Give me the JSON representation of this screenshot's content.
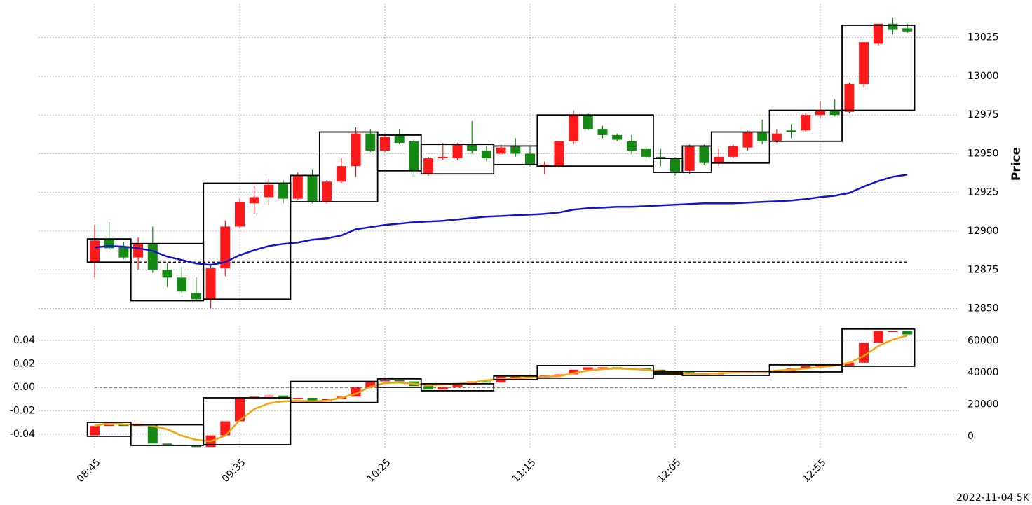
{
  "chart_data": [
    {
      "type": "candlestick",
      "ylabel": "Price",
      "open": [
        12880,
        12895,
        12890,
        12883,
        12892,
        12875,
        12870,
        12860,
        12856,
        12876,
        12903,
        12918,
        12922,
        12931,
        12921,
        12936,
        12919,
        12932,
        12942,
        12963,
        12952,
        12962,
        12958,
        12937,
        12947,
        12947,
        12956,
        12952,
        12950,
        12955,
        12950,
        12942,
        12942,
        12958,
        12975,
        12966,
        12962,
        12958,
        12953,
        12948,
        12947,
        12939,
        12955,
        12944,
        12948,
        12954,
        12964,
        12958,
        12965,
        12965,
        12975,
        12978,
        12977,
        12995,
        13021,
        13034,
        13031
      ],
      "high": [
        12904,
        12906,
        12893,
        12896,
        12903,
        12879,
        12877,
        12870,
        12879,
        12907,
        12921,
        12929,
        12934,
        12933,
        12938,
        12940,
        12933,
        12947,
        12967,
        12966,
        12962,
        12966,
        12959,
        12948,
        12957,
        12957,
        12971,
        12955,
        12956,
        12960,
        12955,
        12945,
        12958,
        12978,
        12976,
        12968,
        12963,
        12962,
        12955,
        12953,
        12948,
        12956,
        12956,
        12953,
        12956,
        12965,
        12972,
        12966,
        12969,
        12976,
        12984,
        12985,
        12996,
        13022,
        13034,
        13038,
        13034
      ],
      "low": [
        12870,
        12888,
        12882,
        12875,
        12873,
        12864,
        12860,
        12855,
        12850,
        12871,
        12902,
        12911,
        12917,
        12918,
        12920,
        12918,
        12918,
        12931,
        12935,
        12951,
        12951,
        12956,
        12935,
        12936,
        12946,
        12946,
        12950,
        12945,
        12949,
        12948,
        12942,
        12937,
        12941,
        12956,
        12965,
        12960,
        12958,
        12950,
        12947,
        12942,
        12936,
        12937,
        12943,
        12942,
        12947,
        12952,
        12956,
        12957,
        12960,
        12964,
        12973,
        12974,
        12976,
        12993,
        13020,
        13027,
        13028
      ],
      "close": [
        12894,
        12889,
        12883,
        12892,
        12875,
        12870,
        12861,
        12856,
        12876,
        12903,
        12919,
        12922,
        12930,
        12921,
        12936,
        12919,
        12932,
        12942,
        12963,
        12952,
        12961,
        12957,
        12939,
        12947,
        12948,
        12956,
        12952,
        12947,
        12954,
        12950,
        12943,
        12943,
        12958,
        12975,
        12966,
        12962,
        12959,
        12952,
        12948,
        12947,
        12938,
        12955,
        12944,
        12948,
        12955,
        12964,
        12958,
        12963,
        12964,
        12975,
        12978,
        12975,
        12995,
        13022,
        13034,
        13030,
        13029
      ],
      "up_color": "#fe1a1a",
      "down_color": "#148a14",
      "ylim": [
        12848,
        13047
      ],
      "yticks": [
        12850,
        12875,
        12900,
        12925,
        12950,
        12975,
        13000,
        13025
      ],
      "grid": true,
      "reference_line": 12880,
      "series": [
        {
          "color": "#1414c8",
          "values": [
            12889.5,
            12890.4,
            12890.0,
            12889.0,
            12887.2,
            12883.6,
            12881.4,
            12879.1,
            12878.2,
            12880.0,
            12884.5,
            12887.7,
            12890.4,
            12891.8,
            12892.7,
            12894.5,
            12895.4,
            12897.2,
            12901.2,
            12902.6,
            12904.0,
            12904.9,
            12905.8,
            12906.2,
            12906.7,
            12907.6,
            12908.5,
            12909.4,
            12909.8,
            12910.3,
            12910.7,
            12911.2,
            12912.1,
            12913.9,
            12914.8,
            12915.2,
            12915.7,
            12915.7,
            12916.1,
            12916.6,
            12917.1,
            12917.5,
            12918.0,
            12918.0,
            12918.0,
            12918.4,
            12918.9,
            12919.3,
            12919.8,
            12920.7,
            12922.0,
            12922.9,
            12924.7,
            12928.8,
            12932.4,
            12935.1,
            12936.5
          ]
        }
      ],
      "boxes": [
        {
          "start": 0,
          "end": 2,
          "low": 12880,
          "high": 12895
        },
        {
          "start": 3,
          "end": 7,
          "low": 12855,
          "high": 12892
        },
        {
          "start": 8,
          "end": 13,
          "low": 12856,
          "high": 12931
        },
        {
          "start": 14,
          "end": 15,
          "low": 12919,
          "high": 12936
        },
        {
          "start": 16,
          "end": 19,
          "low": 12919,
          "high": 12964
        },
        {
          "start": 20,
          "end": 22,
          "low": 12939,
          "high": 12962
        },
        {
          "start": 23,
          "end": 27,
          "low": 12937,
          "high": 12956
        },
        {
          "start": 28,
          "end": 30,
          "low": 12943,
          "high": 12955
        },
        {
          "start": 31,
          "end": 38,
          "low": 12942,
          "high": 12975
        },
        {
          "start": 39,
          "end": 40,
          "low": 12938,
          "high": 12947
        },
        {
          "start": 41,
          "end": 42,
          "low": 12938,
          "high": 12955
        },
        {
          "start": 43,
          "end": 46,
          "low": 12944,
          "high": 12964
        },
        {
          "start": 47,
          "end": 51,
          "low": 12958,
          "high": 12978
        },
        {
          "start": 52,
          "end": 56,
          "low": 12978,
          "high": 13033
        }
      ]
    },
    {
      "type": "candlestick",
      "categories": [
        "08:45",
        null,
        null,
        null,
        null,
        null,
        null,
        null,
        null,
        null,
        "09:35",
        null,
        null,
        null,
        null,
        null,
        null,
        null,
        null,
        null,
        "10:25",
        null,
        null,
        null,
        null,
        null,
        null,
        null,
        null,
        null,
        "11:15",
        null,
        null,
        null,
        null,
        null,
        null,
        null,
        null,
        null,
        "12:05",
        null,
        null,
        null,
        null,
        null,
        null,
        null,
        null,
        null,
        "12:55",
        null,
        null,
        null,
        null,
        null,
        null
      ],
      "open": [
        -0.041,
        -0.033,
        -0.032,
        -0.033,
        -0.032,
        -0.048,
        -0.049,
        -0.05,
        -0.051,
        -0.041,
        -0.029,
        -0.009,
        -0.008,
        -0.007,
        -0.01,
        -0.009,
        -0.012,
        -0.01,
        -0.008,
        0.0,
        0.005,
        0.006,
        0.005,
        0.001,
        -0.002,
        0.0,
        0.002,
        0.005,
        0.004,
        0.009,
        0.009,
        0.009,
        0.01,
        0.011,
        0.015,
        0.017,
        0.017,
        0.016,
        0.016,
        0.015,
        0.014,
        0.013,
        0.012,
        0.011,
        0.012,
        0.013,
        0.013,
        0.013,
        0.014,
        0.016,
        0.018,
        0.019,
        0.018,
        0.021,
        0.038,
        0.048,
        0.048
      ],
      "close": [
        -0.033,
        -0.032,
        -0.033,
        -0.032,
        -0.048,
        -0.049,
        -0.05,
        -0.051,
        -0.041,
        -0.029,
        -0.009,
        -0.008,
        -0.007,
        -0.01,
        -0.009,
        -0.012,
        -0.01,
        -0.008,
        0.0,
        0.005,
        0.006,
        0.005,
        0.001,
        -0.002,
        0.0,
        0.002,
        0.005,
        0.004,
        0.009,
        0.009,
        0.009,
        0.01,
        0.011,
        0.015,
        0.017,
        0.017,
        0.016,
        0.016,
        0.015,
        0.014,
        0.013,
        0.012,
        0.011,
        0.012,
        0.013,
        0.013,
        0.013,
        0.014,
        0.016,
        0.018,
        0.019,
        0.018,
        0.021,
        0.038,
        0.048,
        0.048,
        0.045
      ],
      "up_color": "#fe1a1a",
      "down_color": "#148a14",
      "ylim": [
        -0.052,
        0.0525
      ],
      "yticks": [
        -0.04,
        -0.02,
        {
          "value": 0,
          "label": "0.00"
        },
        0.02,
        0.04
      ],
      "y2lim": [
        -7470,
        69450
      ],
      "y2ticks": [
        0,
        20000,
        40000,
        60000
      ],
      "grid": true,
      "reference_line": 0,
      "series": [
        {
          "color": "#f5a40c",
          "axis": "y2",
          "values": [
            6600,
            8350,
            7470,
            7470,
            6600,
            4400,
            440,
            -2200,
            -3100,
            440,
            10100,
            17100,
            20700,
            22000,
            22400,
            22000,
            22400,
            24200,
            26800,
            31200,
            33400,
            33800,
            33000,
            32100,
            32500,
            33000,
            33800,
            35200,
            36000,
            36500,
            36900,
            37400,
            37800,
            39600,
            41300,
            42200,
            42600,
            42200,
            41800,
            40900,
            40000,
            39100,
            39100,
            39600,
            40000,
            40400,
            40400,
            41300,
            41800,
            42600,
            43500,
            44400,
            46200,
            50500,
            56700,
            60700,
            63300
          ]
        }
      ],
      "boxes": [
        {
          "start": 0,
          "end": 2,
          "low": -0.0418,
          "high": -0.0299
        },
        {
          "start": 3,
          "end": 7,
          "low": -0.0496,
          "high": -0.032
        },
        {
          "start": 8,
          "end": 13,
          "low": -0.049,
          "high": -0.009
        },
        {
          "start": 14,
          "end": 19,
          "low": -0.013,
          "high": 0.005
        },
        {
          "start": 20,
          "end": 22,
          "low": 0.0,
          "high": 0.0072
        },
        {
          "start": 23,
          "end": 27,
          "low": -0.003,
          "high": 0.003
        },
        {
          "start": 28,
          "end": 30,
          "low": 0.0066,
          "high": 0.0096
        },
        {
          "start": 31,
          "end": 38,
          "low": 0.0078,
          "high": 0.0185
        },
        {
          "start": 39,
          "end": 40,
          "low": 0.0113,
          "high": 0.0131
        },
        {
          "start": 41,
          "end": 46,
          "low": 0.0101,
          "high": 0.0137
        },
        {
          "start": 47,
          "end": 51,
          "low": 0.0131,
          "high": 0.0191
        },
        {
          "start": 52,
          "end": 56,
          "low": 0.0179,
          "high": 0.0496
        }
      ]
    }
  ],
  "footer": "2022-11-04 5K"
}
